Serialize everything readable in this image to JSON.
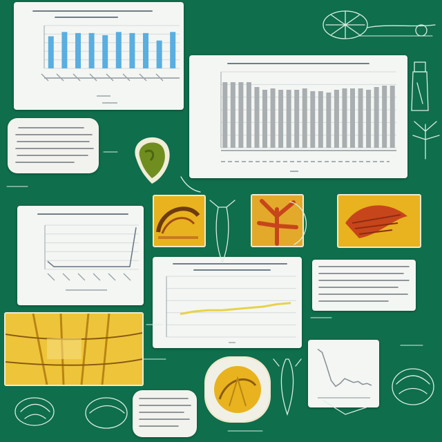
{
  "board": {
    "background": "#0f6e4c",
    "chalk": "#d9efe2"
  },
  "colors": {
    "bar_blue": "#5aaee0",
    "bar_gray": "#a9aeb0",
    "line_gray": "#6c7a86",
    "photo_yellow": "#e8b31e",
    "photo_red": "#c7451b",
    "leaf_green": "#6f8e1f"
  },
  "icons": [
    "leaf-sketch",
    "tree-sketch",
    "cactus-sketch",
    "bottle-sketch",
    "cabbage-sketch",
    "turtle-sketch"
  ],
  "chart_data": [
    {
      "type": "bar",
      "title": "",
      "categories": [
        "",
        "",
        "",
        "",
        "",
        "",
        "",
        "",
        "",
        ""
      ],
      "values": [
        30,
        34,
        33,
        33,
        31,
        34,
        33,
        33,
        26,
        34
      ],
      "ylim": [
        0,
        40
      ],
      "grid": true,
      "color": "#5aaee0"
    },
    {
      "type": "bar",
      "title": "",
      "categories": [
        "",
        "",
        "",
        "",
        "",
        "",
        "",
        "",
        "",
        "",
        "",
        "",
        "",
        "",
        "",
        "",
        "",
        "",
        "",
        "",
        "",
        ""
      ],
      "values": [
        95,
        95,
        95,
        95,
        88,
        84,
        86,
        84,
        84,
        84,
        86,
        82,
        82,
        80,
        84,
        86,
        86,
        86,
        84,
        88,
        90,
        90
      ],
      "ylim": [
        0,
        110
      ],
      "grid": true,
      "color": "#a9aeb0"
    },
    {
      "type": "line",
      "title": "",
      "x": [
        0,
        1,
        2,
        3,
        4,
        5,
        6,
        7,
        8,
        9,
        10,
        11,
        12,
        13,
        14
      ],
      "y": [
        18,
        6,
        6,
        6,
        6,
        6,
        6,
        6,
        6,
        6,
        6,
        6,
        6,
        6,
        95
      ],
      "ylim": [
        0,
        100
      ],
      "grid": true,
      "color": "#6c7a86"
    },
    {
      "type": "line",
      "title": "",
      "x": [
        0,
        1,
        2,
        3,
        4,
        5,
        6,
        7,
        8
      ],
      "y": [
        38,
        42,
        44,
        44,
        46,
        48,
        50,
        54,
        56
      ],
      "ylim": [
        0,
        100
      ],
      "grid": true,
      "color": "#e7d24a"
    },
    {
      "type": "line",
      "title": "",
      "x": [
        0,
        1,
        2,
        3,
        4,
        5,
        6,
        7,
        8,
        9,
        10,
        11,
        12
      ],
      "y": [
        95,
        88,
        60,
        30,
        18,
        24,
        34,
        30,
        26,
        28,
        22,
        24,
        20
      ],
      "ylim": [
        0,
        100
      ],
      "grid": false,
      "color": "#8a939a"
    }
  ]
}
